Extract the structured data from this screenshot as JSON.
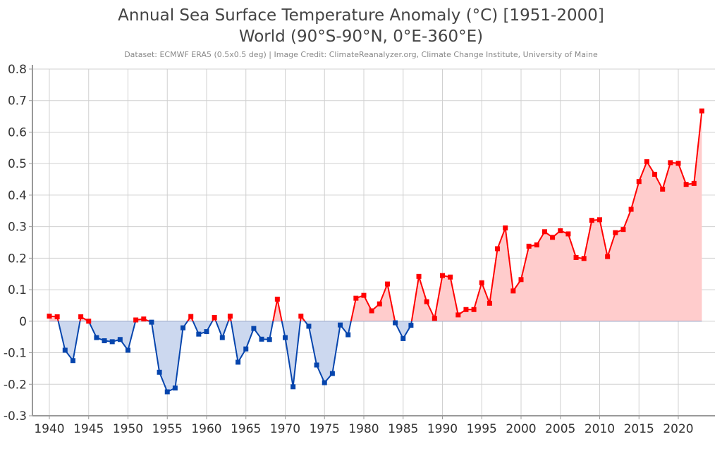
{
  "chart_data": {
    "type": "area",
    "title": "Annual Sea Surface Temperature Anomaly (°C) [1951-2000]",
    "subtitle": "World (90°S-90°N, 0°E-360°E)",
    "credit": "Dataset: ECMWF ERA5 (0.5x0.5 deg) | Image Credit: ClimateReanalyzer.org, Climate Change Institute, University of Maine",
    "xlabel": "",
    "ylabel": "",
    "xlim": [
      1939.8,
      2024.5
    ],
    "ylim": [
      -0.3,
      0.8
    ],
    "grid": true,
    "x_ticks": [
      "1940",
      "1945",
      "1950",
      "1955",
      "1960",
      "1965",
      "1970",
      "1975",
      "1980",
      "1985",
      "1990",
      "1995",
      "2000",
      "2005",
      "2010",
      "2015",
      "2020"
    ],
    "y_ticks": [
      "0.8",
      "0.7",
      "0.6",
      "0.5",
      "0.4",
      "0.3",
      "0.2",
      "0.1",
      "0",
      "-0.1",
      "-0.2",
      "-0.3"
    ],
    "y_tick_values": [
      0.8,
      0.7,
      0.6,
      0.5,
      0.4,
      0.3,
      0.2,
      0.1,
      0,
      -0.1,
      -0.2,
      -0.3
    ],
    "colors": {
      "positive": "#ff0000",
      "positive_fill": "#ffcccc",
      "negative": "#0645ad",
      "negative_fill": "#ccd8ef"
    },
    "x_start": 1940,
    "values": [
      0.016,
      0.014,
      -0.092,
      -0.125,
      0.014,
      0.0,
      -0.052,
      -0.062,
      -0.065,
      -0.058,
      -0.092,
      0.004,
      0.007,
      -0.003,
      -0.162,
      -0.224,
      -0.212,
      -0.021,
      0.015,
      -0.041,
      -0.033,
      0.012,
      -0.052,
      0.016,
      -0.13,
      -0.088,
      -0.023,
      -0.057,
      -0.058,
      0.07,
      -0.052,
      -0.208,
      0.016,
      -0.016,
      -0.139,
      -0.195,
      -0.166,
      -0.012,
      -0.043,
      0.073,
      0.082,
      0.033,
      0.055,
      0.118,
      -0.005,
      -0.055,
      -0.013,
      0.142,
      0.062,
      0.009,
      0.145,
      0.14,
      0.02,
      0.037,
      0.037,
      0.122,
      0.057,
      0.23,
      0.296,
      0.096,
      0.132,
      0.238,
      0.242,
      0.284,
      0.266,
      0.287,
      0.277,
      0.202,
      0.199,
      0.32,
      0.322,
      0.205,
      0.281,
      0.291,
      0.355,
      0.443,
      0.506,
      0.466,
      0.419,
      0.503,
      0.501,
      0.434,
      0.437,
      0.667
    ]
  }
}
